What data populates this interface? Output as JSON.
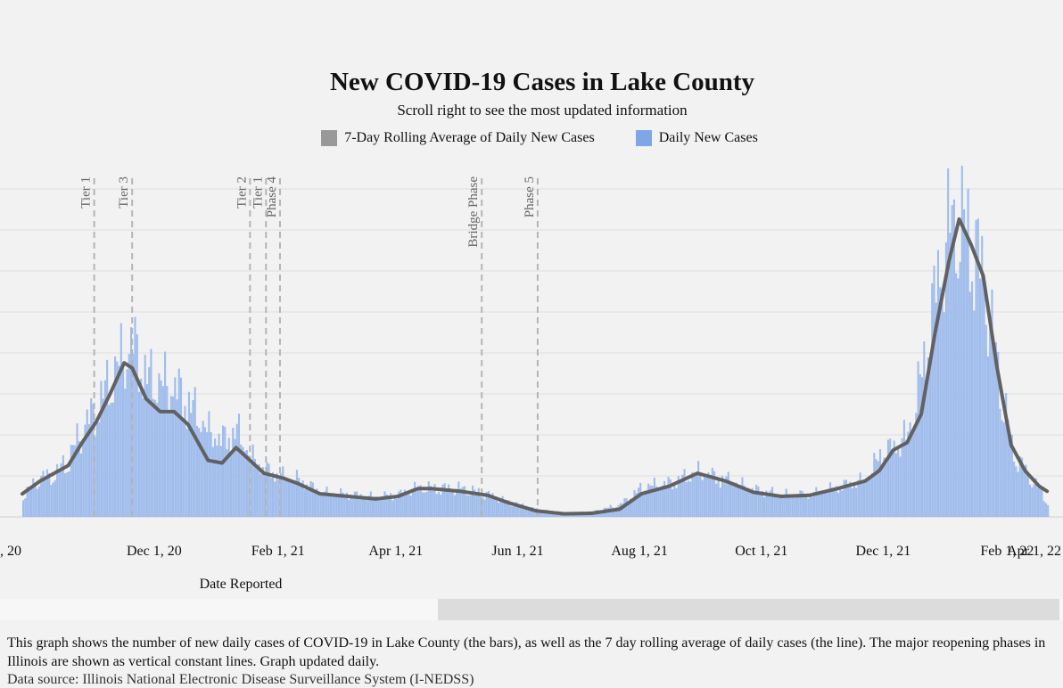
{
  "chart_data": {
    "type": "bar",
    "title": "New COVID-19 Cases in Lake County",
    "subtitle": "Scroll right to see the most updated information",
    "legend": [
      {
        "label": "7-Day Rolling Average of Daily New Cases",
        "color": "#999999"
      },
      {
        "label": "Daily New Cases",
        "color": "#7fa6e6"
      }
    ],
    "xlabel": "Date Reported",
    "x_ticks": [
      ", 20",
      "Dec 1, 20",
      "Feb 1, 21",
      "Apr 1, 21",
      "Jun 1, 21",
      "Aug 1, 21",
      "Oct 1, 21",
      "Dec 1, 21",
      "Feb 1, 22",
      "Apr 1, 22"
    ],
    "x_tick_dates": [
      "2020-10-01",
      "2020-12-01",
      "2021-02-01",
      "2021-04-01",
      "2021-06-01",
      "2021-08-01",
      "2021-10-01",
      "2021-12-01",
      "2022-02-01",
      "2022-04-01"
    ],
    "x_range": [
      "2020-09-26",
      "2022-04-03"
    ],
    "y_ticks_labeled": false,
    "grid": "horizontal",
    "series": [
      {
        "name": "Daily New Cases",
        "kind": "bar",
        "color": "#9fbcec",
        "points": [
          [
            "2020-09-26",
            0.45
          ],
          [
            "2020-10-05",
            0.8
          ],
          [
            "2020-10-12",
            0.85
          ],
          [
            "2020-10-19",
            1.2
          ],
          [
            "2020-10-26",
            1.8
          ],
          [
            "2020-11-02",
            2.2
          ],
          [
            "2020-11-09",
            2.8
          ],
          [
            "2020-11-16",
            3.3
          ],
          [
            "2020-11-20",
            3.5
          ],
          [
            "2020-11-27",
            2.8
          ],
          [
            "2020-12-04",
            2.7
          ],
          [
            "2020-12-11",
            2.6
          ],
          [
            "2020-12-18",
            2.3
          ],
          [
            "2020-12-28",
            1.7
          ],
          [
            "2021-01-04",
            1.55
          ],
          [
            "2021-01-11",
            1.75
          ],
          [
            "2021-01-18",
            1.2
          ],
          [
            "2021-01-25",
            0.95
          ],
          [
            "2021-02-04",
            0.8
          ],
          [
            "2021-02-11",
            0.75
          ],
          [
            "2021-02-22",
            0.5
          ],
          [
            "2021-03-08",
            0.45
          ],
          [
            "2021-03-22",
            0.4
          ],
          [
            "2021-04-02",
            0.45
          ],
          [
            "2021-04-12",
            0.6
          ],
          [
            "2021-04-19",
            0.58
          ],
          [
            "2021-05-03",
            0.58
          ],
          [
            "2021-05-17",
            0.45
          ],
          [
            "2021-05-27",
            0.3
          ],
          [
            "2021-06-10",
            0.15
          ],
          [
            "2021-06-24",
            0.07
          ],
          [
            "2021-07-08",
            0.1
          ],
          [
            "2021-07-22",
            0.25
          ],
          [
            "2021-08-02",
            0.6
          ],
          [
            "2021-08-16",
            0.68
          ],
          [
            "2021-08-30",
            0.9
          ],
          [
            "2021-09-13",
            0.75
          ],
          [
            "2021-09-27",
            0.55
          ],
          [
            "2021-10-11",
            0.45
          ],
          [
            "2021-10-25",
            0.45
          ],
          [
            "2021-11-08",
            0.6
          ],
          [
            "2021-11-22",
            0.75
          ],
          [
            "2021-11-29",
            1.25
          ],
          [
            "2021-12-06",
            1.4
          ],
          [
            "2021-12-13",
            1.65
          ],
          [
            "2021-12-20",
            2.9
          ],
          [
            "2021-12-27",
            4.6
          ],
          [
            "2022-01-03",
            5.9
          ],
          [
            "2022-01-08",
            6.0
          ],
          [
            "2022-01-14",
            5.6
          ],
          [
            "2022-01-20",
            4.8
          ],
          [
            "2022-01-27",
            3.0
          ],
          [
            "2022-02-03",
            1.4
          ],
          [
            "2022-02-10",
            0.9
          ],
          [
            "2022-02-17",
            0.55
          ],
          [
            "2022-02-21",
            0.3
          ]
        ]
      },
      {
        "name": "7-Day Rolling Average of Daily New Cases",
        "kind": "line",
        "color": "#616161",
        "points": [
          [
            "2020-09-26",
            0.45
          ],
          [
            "2020-10-05",
            0.7
          ],
          [
            "2020-10-12",
            0.85
          ],
          [
            "2020-10-19",
            1.0
          ],
          [
            "2020-10-26",
            1.45
          ],
          [
            "2020-11-02",
            1.85
          ],
          [
            "2020-11-09",
            2.4
          ],
          [
            "2020-11-16",
            3.0
          ],
          [
            "2020-11-20",
            2.9
          ],
          [
            "2020-11-27",
            2.3
          ],
          [
            "2020-12-04",
            2.05
          ],
          [
            "2020-12-11",
            2.05
          ],
          [
            "2020-12-18",
            1.8
          ],
          [
            "2020-12-28",
            1.1
          ],
          [
            "2021-01-04",
            1.05
          ],
          [
            "2021-01-11",
            1.35
          ],
          [
            "2021-01-18",
            1.1
          ],
          [
            "2021-01-25",
            0.85
          ],
          [
            "2021-02-04",
            0.75
          ],
          [
            "2021-02-11",
            0.65
          ],
          [
            "2021-02-22",
            0.45
          ],
          [
            "2021-03-08",
            0.4
          ],
          [
            "2021-03-22",
            0.35
          ],
          [
            "2021-04-02",
            0.4
          ],
          [
            "2021-04-12",
            0.55
          ],
          [
            "2021-04-19",
            0.55
          ],
          [
            "2021-05-03",
            0.5
          ],
          [
            "2021-05-17",
            0.42
          ],
          [
            "2021-05-27",
            0.28
          ],
          [
            "2021-06-10",
            0.12
          ],
          [
            "2021-06-24",
            0.06
          ],
          [
            "2021-07-08",
            0.07
          ],
          [
            "2021-07-22",
            0.15
          ],
          [
            "2021-08-02",
            0.45
          ],
          [
            "2021-08-16",
            0.6
          ],
          [
            "2021-08-30",
            0.85
          ],
          [
            "2021-09-13",
            0.7
          ],
          [
            "2021-09-27",
            0.48
          ],
          [
            "2021-10-11",
            0.4
          ],
          [
            "2021-10-25",
            0.42
          ],
          [
            "2021-11-08",
            0.55
          ],
          [
            "2021-11-22",
            0.7
          ],
          [
            "2021-11-29",
            0.9
          ],
          [
            "2021-12-06",
            1.3
          ],
          [
            "2021-12-13",
            1.45
          ],
          [
            "2021-12-20",
            2.0
          ],
          [
            "2021-12-27",
            3.6
          ],
          [
            "2022-01-03",
            5.0
          ],
          [
            "2022-01-08",
            5.8
          ],
          [
            "2022-01-14",
            5.3
          ],
          [
            "2022-01-20",
            4.7
          ],
          [
            "2022-01-27",
            2.9
          ],
          [
            "2022-02-03",
            1.4
          ],
          [
            "2022-02-10",
            0.9
          ],
          [
            "2022-02-17",
            0.6
          ],
          [
            "2022-02-21",
            0.5
          ]
        ]
      }
    ],
    "phase_lines": [
      {
        "label": "Tier 1",
        "date": "2020-11-01"
      },
      {
        "label": "Tier 3",
        "date": "2020-11-20"
      },
      {
        "label": "Tier 2",
        "date": "2021-01-18"
      },
      {
        "label": "Tier 1",
        "date": "2021-01-26"
      },
      {
        "label": "Phase 4",
        "date": "2021-02-02"
      },
      {
        "label": "Bridge Phase",
        "date": "2021-05-14"
      },
      {
        "label": "Phase 5",
        "date": "2021-06-11"
      }
    ]
  },
  "scrollbar": {
    "label": "horizontal-scroll"
  },
  "description": "This graph shows the number of new daily cases of COVID-19 in Lake County (the bars), as well as the 7 day rolling average of daily cases (the line). The major reopening phases in Illinois are shown as vertical constant lines. Graph updated daily.",
  "source": "Data source: Illinois National Electronic Disease Surveillance System (I-NEDSS)"
}
